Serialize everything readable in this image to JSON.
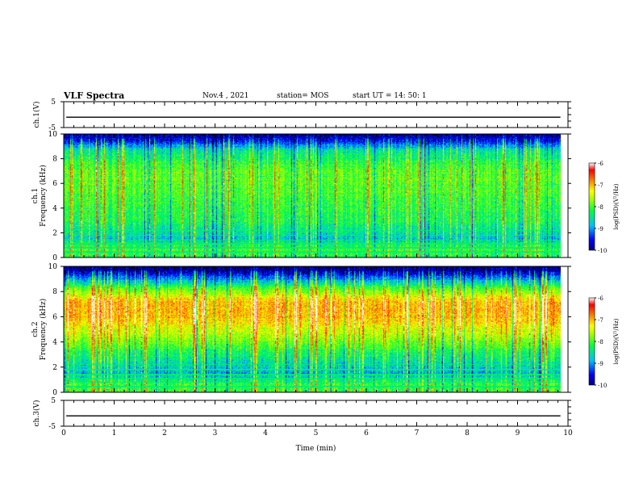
{
  "header": {
    "title": "VLF Spectra",
    "date": "Nov.4 , 2021",
    "station": "station= MOS",
    "start_ut": "start UT = 14: 50: 1"
  },
  "chart_data": [
    {
      "type": "line",
      "panel": "ch1-voltage",
      "ylabel": "ch.1(V)",
      "ylim": [
        -5,
        5
      ],
      "yticks": [
        "5",
        "-5"
      ],
      "xlim": [
        0,
        10
      ],
      "series": [
        {
          "x": [
            0.05,
            9.85
          ],
          "values": [
            -1,
            -1
          ]
        }
      ]
    },
    {
      "type": "heatmap",
      "panel": "ch1-spectrogram",
      "ylabel": [
        "ch.1",
        "Frequency (kHz)"
      ],
      "ylim": [
        0,
        10
      ],
      "yticks": [
        "0",
        "2",
        "4",
        "6",
        "8",
        "10"
      ],
      "xlim": [
        0,
        9.85
      ],
      "band_levels_kHz": [
        [
          0,
          -8.3
        ],
        [
          0.6,
          -8.0
        ],
        [
          1.5,
          -8.7
        ],
        [
          3,
          -8.2
        ],
        [
          5,
          -8.0
        ],
        [
          7,
          -7.9
        ],
        [
          8.7,
          -8.5
        ],
        [
          9.4,
          -9.5
        ],
        [
          10,
          -9.9
        ]
      ],
      "colorbar": {
        "label": "log(PSD)(V²/Hz)",
        "range": [
          -10,
          -6
        ],
        "ticks": [
          "-6",
          "-7",
          "-8",
          "-9",
          "-10"
        ]
      }
    },
    {
      "type": "heatmap",
      "panel": "ch2-spectrogram",
      "ylabel": [
        "ch.2",
        "Frequency (kHz)"
      ],
      "ylim": [
        0,
        10
      ],
      "yticks": [
        "0",
        "2",
        "4",
        "6",
        "8",
        "10"
      ],
      "xlim": [
        0,
        9.85
      ],
      "band_levels_kHz": [
        [
          0,
          -8.2
        ],
        [
          0.6,
          -8.1
        ],
        [
          1.5,
          -8.9
        ],
        [
          3,
          -8.3
        ],
        [
          4.5,
          -7.6
        ],
        [
          6,
          -7.0
        ],
        [
          7.2,
          -7.0
        ],
        [
          8.2,
          -7.9
        ],
        [
          9,
          -9.0
        ],
        [
          9.6,
          -9.8
        ],
        [
          10,
          -10
        ]
      ],
      "colorbar": {
        "label": "log(PSD)(V²/Hz)",
        "range": [
          -10,
          -6
        ],
        "ticks": [
          "-6",
          "-7",
          "-8",
          "-9",
          "-10"
        ]
      }
    },
    {
      "type": "line",
      "panel": "ch3-voltage",
      "ylabel": "ch.3(V)",
      "ylim": [
        -5,
        5
      ],
      "yticks": [
        "5",
        "-5"
      ],
      "xlim": [
        0,
        10
      ],
      "series": [
        {
          "x": [
            0.05,
            9.85
          ],
          "values": [
            -1,
            -1
          ]
        }
      ]
    }
  ],
  "xaxis": {
    "label": "Time (min)",
    "range": [
      0,
      10
    ],
    "ticks": [
      "0",
      "1",
      "2",
      "3",
      "4",
      "5",
      "6",
      "7",
      "8",
      "9",
      "10"
    ]
  },
  "colormap": [
    "#000080",
    "#0000ff",
    "#00bfff",
    "#00ff40",
    "#a0ff00",
    "#ffff00",
    "#ff8000",
    "#ff0000",
    "#ffffff"
  ]
}
